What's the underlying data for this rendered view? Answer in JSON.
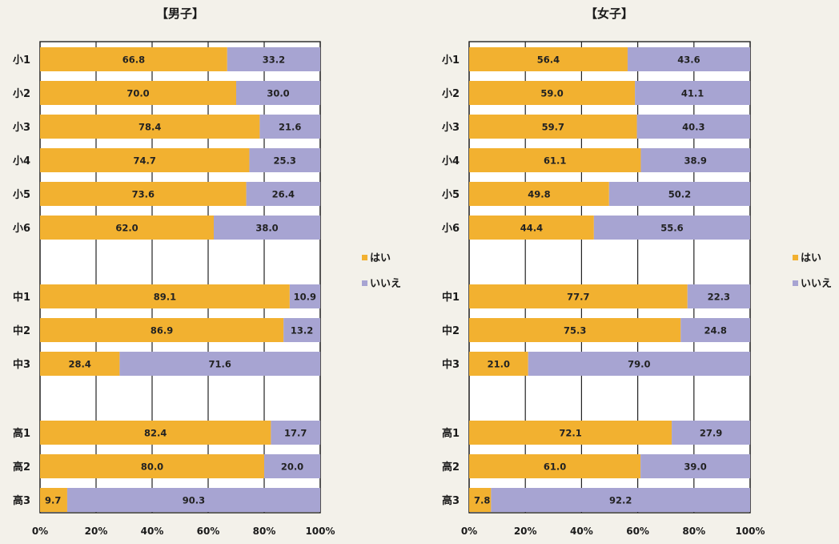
{
  "colors": {
    "yes": "#f2b130",
    "no": "#a7a4d2",
    "plot_bg": "#ffffff",
    "grid": "#222222"
  },
  "chart_data": [
    {
      "type": "bar",
      "orientation": "horizontal",
      "stacked": true,
      "title": "【男子】",
      "categories": [
        "小1",
        "小2",
        "小3",
        "小4",
        "小5",
        "小6",
        "中1",
        "中2",
        "中3",
        "高1",
        "高2",
        "高3"
      ],
      "series": [
        {
          "name": "はい",
          "values": [
            66.8,
            70.0,
            78.4,
            74.7,
            73.6,
            62.0,
            89.1,
            86.9,
            28.4,
            82.4,
            80.0,
            9.7
          ]
        },
        {
          "name": "いいえ",
          "values": [
            33.2,
            30.0,
            21.6,
            25.3,
            26.4,
            38.0,
            10.9,
            13.2,
            71.6,
            17.7,
            20.0,
            90.3
          ]
        }
      ],
      "value_labels": {
        "はい": [
          "66.8",
          "70.0",
          "78.4",
          "74.7",
          "73.6",
          "62.0",
          "89.1",
          "86.9",
          "28.4",
          "82.4",
          "80.0",
          "9.7"
        ],
        "いいえ": [
          "33.2",
          "30.0",
          "21.6",
          "25.3",
          "26.4",
          "38.0",
          "10.9",
          "13.2",
          "71.6",
          "17.7",
          "20.0",
          "90.3"
        ]
      },
      "xlim": [
        0,
        100
      ],
      "xticks": [
        "0%",
        "20%",
        "40%",
        "60%",
        "80%",
        "100%"
      ],
      "grid": true,
      "legend": "right"
    },
    {
      "type": "bar",
      "orientation": "horizontal",
      "stacked": true,
      "title": "【女子】",
      "categories": [
        "小1",
        "小2",
        "小3",
        "小4",
        "小5",
        "小6",
        "中1",
        "中2",
        "中3",
        "高1",
        "高2",
        "高3"
      ],
      "series": [
        {
          "name": "はい",
          "values": [
            56.4,
            59.0,
            59.7,
            61.1,
            49.8,
            44.4,
            77.7,
            75.3,
            21.0,
            72.1,
            61.0,
            7.8
          ]
        },
        {
          "name": "いいえ",
          "values": [
            43.6,
            41.1,
            40.3,
            38.9,
            50.2,
            55.6,
            22.3,
            24.8,
            79.0,
            27.9,
            39.0,
            92.2
          ]
        }
      ],
      "value_labels": {
        "はい": [
          "56.4",
          "59.0",
          "59.7",
          "61.1",
          "49.8",
          "44.4",
          "77.7",
          "75.3",
          "21.0",
          "72.1",
          "61.0",
          "7.8"
        ],
        "いいえ": [
          "43.6",
          "41.1",
          "40.3",
          "38.9",
          "50.2",
          "55.6",
          "22.3",
          "24.8",
          "79.0",
          "27.9",
          "39.0",
          "92.2"
        ]
      },
      "xlim": [
        0,
        100
      ],
      "xticks": [
        "0%",
        "20%",
        "40%",
        "60%",
        "80%",
        "100%"
      ],
      "grid": true,
      "legend": "right"
    }
  ]
}
